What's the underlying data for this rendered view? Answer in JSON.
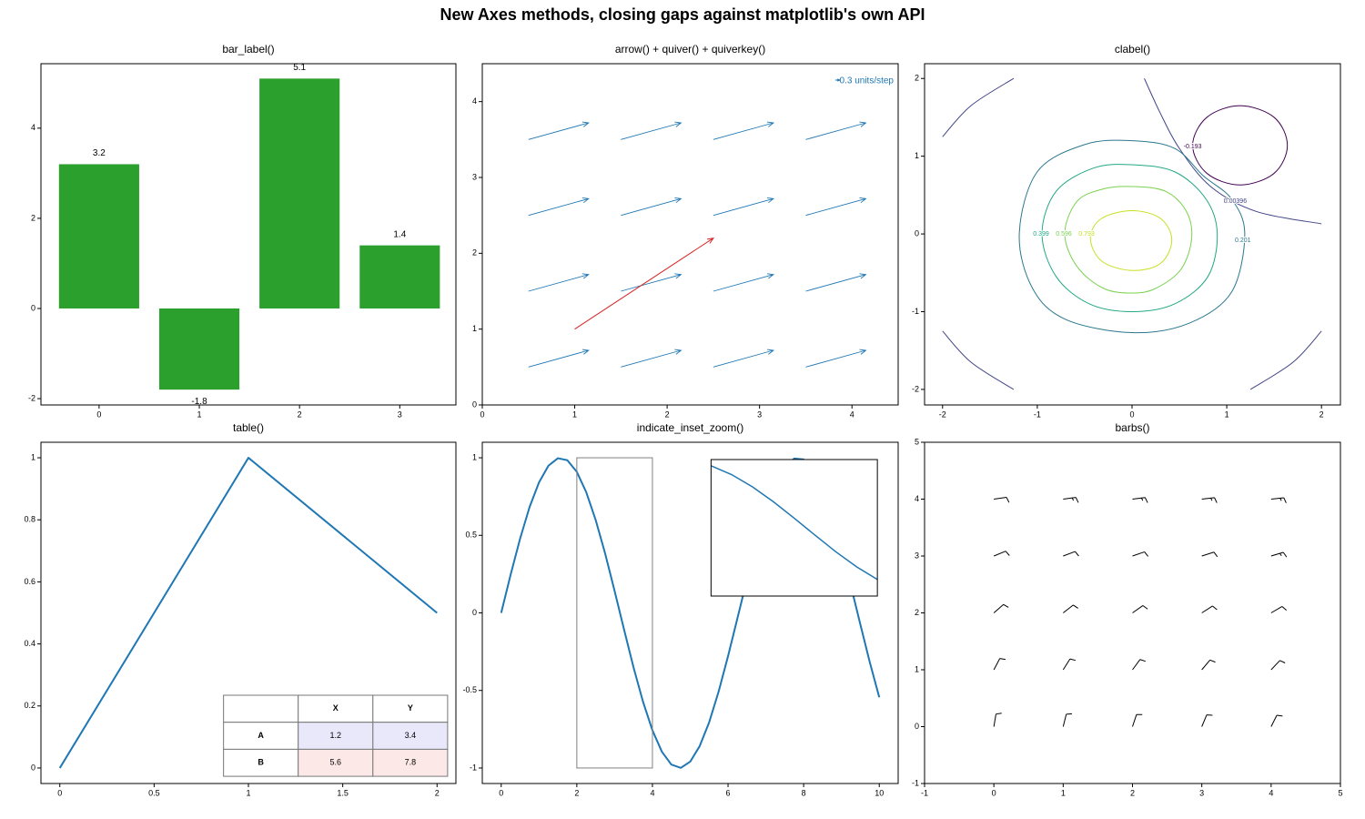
{
  "title": "New Axes methods, closing gaps against matplotlib's own API",
  "chart_data": [
    {
      "type": "bar",
      "title": "bar_label()",
      "x": [
        0,
        1,
        2,
        3
      ],
      "values": [
        3.2,
        -1.8,
        5.1,
        1.4
      ],
      "color": "#2ca02c",
      "xlim": [
        -0.58,
        3.56
      ],
      "ylim": [
        -2.14,
        5.43
      ],
      "xticks": [
        0,
        1,
        2,
        3
      ],
      "yticks": [
        -2,
        0,
        2,
        4
      ]
    },
    {
      "type": "quiver",
      "title": "arrow() + quiver() + quiverkey()",
      "x": [
        0.5,
        1.5,
        2.5,
        3.5,
        0.5,
        1.5,
        2.5,
        3.5,
        0.5,
        1.5,
        2.5,
        3.5,
        0.5,
        1.5,
        2.5,
        3.5
      ],
      "y": [
        0.5,
        0.5,
        0.5,
        0.5,
        1.5,
        1.5,
        1.5,
        1.5,
        2.5,
        2.5,
        2.5,
        2.5,
        3.5,
        3.5,
        3.5,
        3.5
      ],
      "u": [
        0.65,
        0.65,
        0.65,
        0.65,
        0.65,
        0.65,
        0.65,
        0.65,
        0.65,
        0.65,
        0.65,
        0.65,
        0.65,
        0.65,
        0.65,
        0.65
      ],
      "v": [
        0.22,
        0.22,
        0.22,
        0.22,
        0.22,
        0.22,
        0.22,
        0.22,
        0.22,
        0.22,
        0.22,
        0.22,
        0.22,
        0.22,
        0.22,
        0.22
      ],
      "color": "#1f77b4",
      "key_label": "0.3 units/step",
      "arrow": {
        "x": 1,
        "y": 1,
        "dx": 1.5,
        "dy": 1.2,
        "color": "#d62728"
      },
      "xlim": [
        0,
        4.5
      ],
      "ylim": [
        0,
        4.5
      ],
      "xticks": [
        0,
        1,
        2,
        3,
        4
      ],
      "yticks": [
        0,
        1,
        2,
        3,
        4
      ]
    },
    {
      "type": "contour",
      "title": "clabel()",
      "xlim": [
        -2.19,
        2.2
      ],
      "ylim": [
        -2.2,
        2.19
      ],
      "xticks": [
        -2,
        -1,
        0,
        1,
        2
      ],
      "yticks": [
        -2,
        -1,
        0,
        1,
        2
      ],
      "contours": [
        {
          "level": -0.193,
          "color": "#440154",
          "label_at": [
            0.64,
            1.12
          ],
          "pieces": [
            {
              "closed": true,
              "points": [
                [
                  0.64,
                  1.14
                ],
                [
                  0.79,
                  1.5
                ],
                [
                  1.14,
                  1.65
                ],
                [
                  1.5,
                  1.5
                ],
                [
                  1.64,
                  1.14
                ],
                [
                  1.5,
                  0.78
                ],
                [
                  1.14,
                  0.63
                ],
                [
                  0.79,
                  0.78
                ]
              ]
            }
          ]
        },
        {
          "level": 0.00396,
          "color": "#414487",
          "label_at": [
            1.09,
            0.42
          ],
          "pieces": [
            {
              "closed": false,
              "points": [
                [
                  -2,
                  1.25
                ],
                [
                  -1.7,
                  1.65
                ],
                [
                  -1.25,
                  2
                ]
              ]
            },
            {
              "closed": false,
              "points": [
                [
                  0.13,
                  2
                ],
                [
                  0.3,
                  1.55
                ],
                [
                  0.5,
                  1.1
                ],
                [
                  0.83,
                  0.61
                ],
                [
                  1.31,
                  0.29
                ],
                [
                  2,
                  0.13
                ]
              ]
            },
            {
              "closed": false,
              "points": [
                [
                  -2,
                  -1.25
                ],
                [
                  -1.7,
                  -1.65
                ],
                [
                  -1.25,
                  -2
                ]
              ]
            },
            {
              "closed": false,
              "points": [
                [
                  1.25,
                  -2
                ],
                [
                  1.7,
                  -1.65
                ],
                [
                  2,
                  -1.25
                ]
              ]
            }
          ]
        },
        {
          "level": 0.201,
          "color": "#2a788e",
          "label_at": [
            1.17,
            -0.08
          ],
          "pieces": [
            {
              "closed": true,
              "points": [
                [
                  -1.19,
                  0
                ],
                [
                  -1.0,
                  0.8
                ],
                [
                  -0.5,
                  1.15
                ],
                [
                  0,
                  1.2
                ],
                [
                  0.45,
                  1.1
                ],
                [
                  0.75,
                  0.75
                ],
                [
                  1.05,
                  0.45
                ],
                [
                  1.19,
                  0
                ],
                [
                  1.05,
                  -0.75
                ],
                [
                  0.6,
                  -1.15
                ],
                [
                  0,
                  -1.27
                ],
                [
                  -0.7,
                  -1.1
                ],
                [
                  -1.05,
                  -0.7
                ]
              ]
            }
          ]
        },
        {
          "level": 0.399,
          "color": "#22a884",
          "label_at": [
            -0.96,
            0
          ],
          "pieces": [
            {
              "closed": true,
              "points": [
                [
                  -0.95,
                  0
                ],
                [
                  -0.8,
                  0.55
                ],
                [
                  -0.4,
                  0.85
                ],
                [
                  0,
                  0.89
                ],
                [
                  0.45,
                  0.8
                ],
                [
                  0.78,
                  0.45
                ],
                [
                  0.9,
                  0
                ],
                [
                  0.8,
                  -0.55
                ],
                [
                  0.45,
                  -0.9
                ],
                [
                  0,
                  -1.0
                ],
                [
                  -0.45,
                  -0.9
                ],
                [
                  -0.8,
                  -0.55
                ]
              ]
            }
          ]
        },
        {
          "level": 0.596,
          "color": "#7ad151",
          "label_at": [
            -0.72,
            0
          ],
          "pieces": [
            {
              "closed": true,
              "points": [
                [
                  -0.71,
                  0
                ],
                [
                  -0.58,
                  0.42
                ],
                [
                  -0.3,
                  0.58
                ],
                [
                  0,
                  0.61
                ],
                [
                  0.35,
                  0.55
                ],
                [
                  0.57,
                  0.3
                ],
                [
                  0.63,
                  -0.05
                ],
                [
                  0.52,
                  -0.45
                ],
                [
                  0.25,
                  -0.7
                ],
                [
                  0,
                  -0.76
                ],
                [
                  -0.3,
                  -0.7
                ],
                [
                  -0.58,
                  -0.42
                ]
              ]
            }
          ]
        },
        {
          "level": 0.793,
          "color": "#c8e020",
          "label_at": [
            -0.48,
            0
          ],
          "pieces": [
            {
              "closed": true,
              "points": [
                [
                  -0.44,
                  -0.05
                ],
                [
                  -0.32,
                  0.2
                ],
                [
                  0,
                  0.3
                ],
                [
                  0.3,
                  0.2
                ],
                [
                  0.42,
                  -0.08
                ],
                [
                  0.3,
                  -0.38
                ],
                [
                  0,
                  -0.47
                ],
                [
                  -0.32,
                  -0.35
                ]
              ]
            }
          ]
        }
      ]
    },
    {
      "type": "line",
      "title": "table()",
      "x": [
        0,
        1,
        2
      ],
      "values": [
        0,
        1,
        0.5
      ],
      "color": "#1f77b4",
      "xlim": [
        -0.1,
        2.1
      ],
      "ylim": [
        -0.05,
        1.05
      ],
      "xticks": [
        0,
        0.5,
        1,
        1.5,
        2
      ],
      "yticks": [
        0,
        0.2,
        0.4,
        0.6,
        0.8,
        1
      ],
      "table": {
        "col_labels": [
          "X",
          "Y"
        ],
        "row_labels": [
          "A",
          "B"
        ],
        "cells": [
          [
            1.2,
            3.4
          ],
          [
            5.6,
            7.8
          ]
        ],
        "row_colors": [
          "#e8e8fa",
          "#fde8e8"
        ]
      }
    },
    {
      "type": "line",
      "title": "indicate_inset_zoom()",
      "x": [
        0,
        0.25,
        0.5,
        0.75,
        1,
        1.25,
        1.5,
        1.75,
        2,
        2.25,
        2.5,
        2.75,
        3,
        3.25,
        3.5,
        3.75,
        4,
        4.25,
        4.5,
        4.75,
        5,
        5.25,
        5.5,
        5.75,
        6,
        6.25,
        6.5,
        6.75,
        7,
        7.25,
        7.5,
        7.75,
        8,
        8.25,
        8.5,
        8.75,
        9,
        9.25,
        9.5,
        9.75,
        10
      ],
      "values": [
        0,
        0.247,
        0.479,
        0.682,
        0.841,
        0.949,
        0.997,
        0.984,
        0.909,
        0.778,
        0.598,
        0.382,
        0.141,
        -0.108,
        -0.351,
        -0.572,
        -0.757,
        -0.895,
        -0.978,
        -0.999,
        -0.959,
        -0.859,
        -0.706,
        -0.508,
        -0.279,
        -0.033,
        0.215,
        0.45,
        0.657,
        0.823,
        0.938,
        0.995,
        0.989,
        0.923,
        0.798,
        0.624,
        0.412,
        0.174,
        -0.075,
        -0.319,
        -0.544
      ],
      "color": "#1f77b4",
      "zoom": {
        "xlim": [
          2,
          4
        ],
        "ylim": [
          -1,
          1
        ]
      },
      "xlim": [
        -0.5,
        10.5
      ],
      "ylim": [
        -1.1,
        1.1
      ],
      "xticks": [
        0,
        2,
        4,
        6,
        8,
        10
      ],
      "yticks": [
        -1,
        -0.5,
        0,
        0.5,
        1
      ]
    },
    {
      "type": "barbs",
      "title": "barbs()",
      "x": [
        0,
        1,
        2,
        3,
        4,
        0,
        1,
        2,
        3,
        4,
        0,
        1,
        2,
        3,
        4,
        0,
        1,
        2,
        3,
        4,
        0,
        1,
        2,
        3,
        4
      ],
      "y": [
        0,
        0,
        0,
        0,
        0,
        1,
        1,
        1,
        1,
        1,
        2,
        2,
        2,
        2,
        2,
        3,
        3,
        3,
        3,
        3,
        4,
        4,
        4,
        4,
        4
      ],
      "u": [
        2,
        3,
        4,
        5,
        6,
        5,
        6,
        7,
        8,
        9,
        8,
        9,
        10,
        11,
        12,
        11,
        12,
        13,
        14,
        15,
        14,
        15,
        16,
        17,
        18
      ],
      "v": [
        12,
        12,
        12,
        12,
        12,
        9.5,
        9.5,
        9.5,
        9.5,
        9.5,
        7,
        7,
        7,
        7,
        7,
        4.5,
        4.5,
        4.5,
        4.5,
        4.5,
        2,
        2,
        2,
        2,
        2
      ],
      "color": "#000000",
      "xlim": [
        -1,
        5
      ],
      "ylim": [
        -1,
        5
      ],
      "xticks": [
        -1,
        0,
        1,
        2,
        3,
        4,
        5
      ],
      "yticks": [
        -1,
        0,
        1,
        2,
        3,
        4,
        5
      ]
    }
  ]
}
